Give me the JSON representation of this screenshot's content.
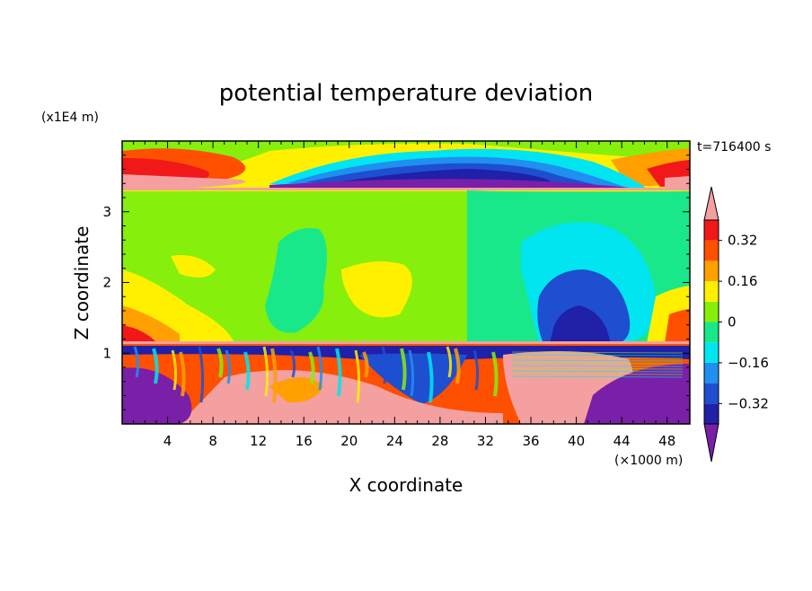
{
  "chart_data": {
    "type": "heatmap",
    "title": "potential temperature deviation",
    "xlabel": "X coordinate",
    "ylabel": "Z coordinate",
    "x_unit": "(×1000 m)",
    "y_unit": "(x1E4 m)",
    "time_label": "t=716400 s",
    "xlim": [
      0,
      50
    ],
    "ylim": [
      0,
      4
    ],
    "x_ticks": [
      "4",
      "8",
      "12",
      "16",
      "20",
      "24",
      "28",
      "32",
      "36",
      "40",
      "44",
      "48"
    ],
    "y_ticks": [
      "1",
      "2",
      "3"
    ],
    "colorbar": {
      "levels": [
        -0.4,
        -0.32,
        -0.24,
        -0.16,
        -0.08,
        0,
        0.08,
        0.16,
        0.24,
        0.32,
        0.4
      ],
      "tick_labels": [
        "0.32",
        "0.16",
        "0",
        "−0.16",
        "−0.32"
      ],
      "colors": [
        "#7a1fa8",
        "#2020a8",
        "#1e4fd0",
        "#1f8ff0",
        "#00e5ef",
        "#18e88a",
        "#86ef0c",
        "#fff000",
        "#ffa000",
        "#ff5000",
        "#f01818",
        "#f4a0a0"
      ],
      "extend": "both"
    }
  }
}
